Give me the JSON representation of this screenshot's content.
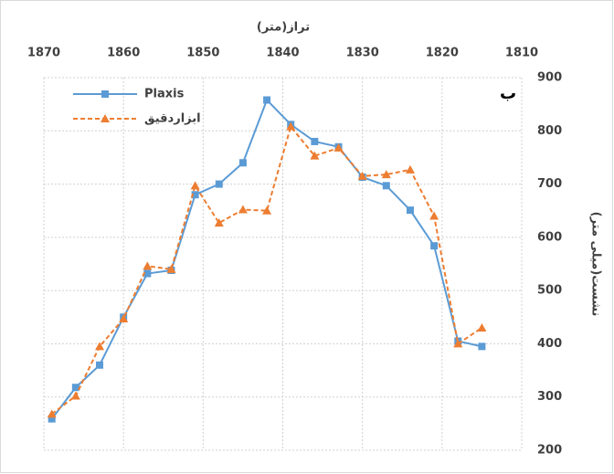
{
  "chart_data": {
    "type": "line",
    "x_label": "تراز(متر)",
    "y_label": "نشست(میلی متر)",
    "annotation": "ب",
    "x": [
      1869,
      1866,
      1863,
      1860,
      1857,
      1854,
      1851,
      1848,
      1845,
      1842,
      1839,
      1836,
      1833,
      1830,
      1827,
      1824,
      1821,
      1818,
      1815
    ],
    "series": [
      {
        "name": "Plaxis",
        "color": "#5b9bd5",
        "marker": "square",
        "dash": false,
        "values": [
          259,
          318,
          360,
          450,
          532,
          538,
          680,
          700,
          740,
          858,
          812,
          780,
          770,
          713,
          697,
          651,
          584,
          405,
          395
        ]
      },
      {
        "name": "ابزاردقیق",
        "color": "#ed7d31",
        "marker": "triangle",
        "dash": true,
        "values": [
          268,
          302,
          395,
          447,
          546,
          540,
          697,
          627,
          652,
          650,
          808,
          753,
          768,
          715,
          718,
          727,
          640,
          400,
          430
        ]
      }
    ],
    "xlim": [
      1870,
      1810
    ],
    "xticks": [
      1870,
      1860,
      1850,
      1840,
      1830,
      1820,
      1810
    ],
    "ylim": [
      200,
      900
    ],
    "yticks": [
      200,
      300,
      400,
      500,
      600,
      700,
      800,
      900
    ],
    "grid": true,
    "legend": "top-left"
  }
}
